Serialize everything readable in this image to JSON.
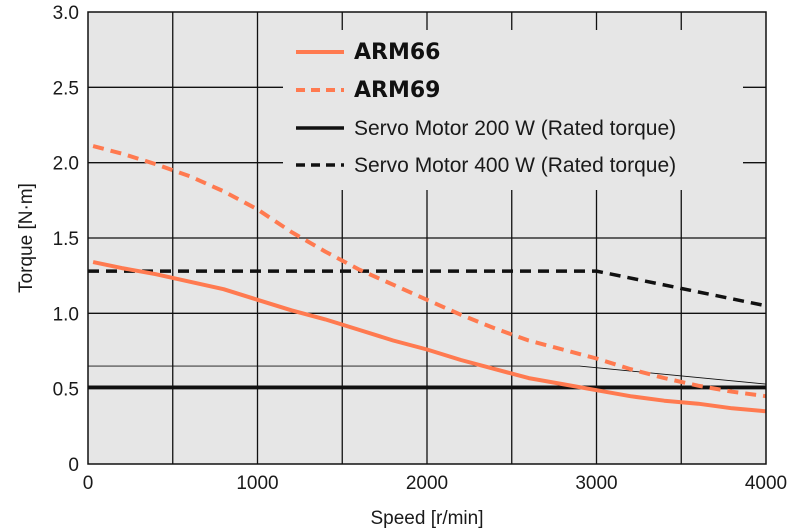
{
  "chart_data": {
    "type": "line",
    "xlabel": "Speed [r/min]",
    "ylabel": "Torque [N·m]",
    "xlim": [
      0,
      4000
    ],
    "ylim": [
      0,
      3.0
    ],
    "x_ticks": [
      0,
      1000,
      2000,
      3000,
      4000
    ],
    "x_tick_labels": [
      "0",
      "1000",
      "2000",
      "3000",
      "4000"
    ],
    "y_ticks": [
      0,
      0.5,
      1.0,
      1.5,
      2.0,
      2.5,
      3.0
    ],
    "y_tick_labels": [
      "0",
      "0.5",
      "1.0",
      "1.5",
      "2.0",
      "2.5",
      "3.0"
    ],
    "grid": true,
    "x_grid_step": 500,
    "y_grid_step": 0.5,
    "legend_position": "top-right",
    "colors": {
      "plot_background": "#e6e6e6",
      "orange": "#ff7a50",
      "black": "#111111"
    },
    "series": [
      {
        "name": "ARM66",
        "style": "solid",
        "color": "#ff7a50",
        "points": [
          [
            30,
            1.34
          ],
          [
            200,
            1.3
          ],
          [
            400,
            1.26
          ],
          [
            600,
            1.21
          ],
          [
            800,
            1.16
          ],
          [
            1000,
            1.09
          ],
          [
            1200,
            1.02
          ],
          [
            1400,
            0.96
          ],
          [
            1600,
            0.89
          ],
          [
            1800,
            0.82
          ],
          [
            2000,
            0.76
          ],
          [
            2200,
            0.69
          ],
          [
            2400,
            0.63
          ],
          [
            2600,
            0.57
          ],
          [
            2800,
            0.53
          ],
          [
            3000,
            0.49
          ],
          [
            3200,
            0.45
          ],
          [
            3400,
            0.42
          ],
          [
            3600,
            0.4
          ],
          [
            3800,
            0.37
          ],
          [
            4000,
            0.35
          ]
        ]
      },
      {
        "name": "ARM69",
        "style": "dashed",
        "color": "#ff7a50",
        "points": [
          [
            30,
            2.11
          ],
          [
            200,
            2.06
          ],
          [
            400,
            1.99
          ],
          [
            600,
            1.91
          ],
          [
            800,
            1.81
          ],
          [
            1000,
            1.69
          ],
          [
            1200,
            1.54
          ],
          [
            1400,
            1.41
          ],
          [
            1600,
            1.29
          ],
          [
            1800,
            1.19
          ],
          [
            2000,
            1.09
          ],
          [
            2200,
            0.99
          ],
          [
            2400,
            0.9
          ],
          [
            2600,
            0.82
          ],
          [
            2800,
            0.76
          ],
          [
            3000,
            0.7
          ],
          [
            3200,
            0.63
          ],
          [
            3400,
            0.57
          ],
          [
            3600,
            0.52
          ],
          [
            3800,
            0.48
          ],
          [
            4000,
            0.45
          ]
        ]
      },
      {
        "name": "Servo Motor 200 W (Rated torque)",
        "style": "solid",
        "color": "#111111",
        "points": [
          [
            0,
            0.51
          ],
          [
            4000,
            0.51
          ]
        ]
      },
      {
        "name": "Servo Motor 400 W (Rated torque)",
        "style": "dashed",
        "color": "#111111",
        "points": [
          [
            0,
            1.28
          ],
          [
            3000,
            1.28
          ],
          [
            4000,
            1.05
          ]
        ]
      }
    ],
    "unlabeled_reference_line": {
      "style": "thin",
      "color": "#111111",
      "points": [
        [
          0,
          0.65
        ],
        [
          2900,
          0.65
        ],
        [
          4000,
          0.53
        ]
      ]
    }
  }
}
